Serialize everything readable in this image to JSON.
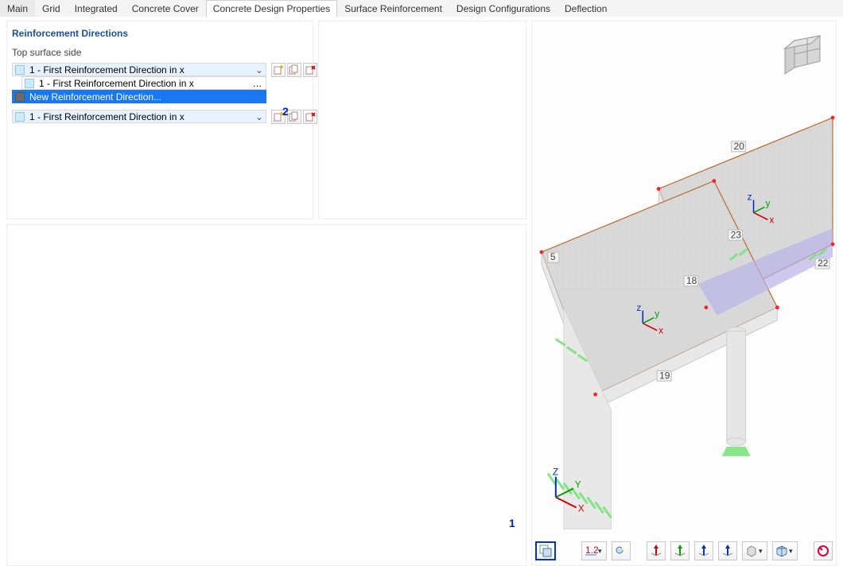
{
  "tabs": {
    "items": [
      "Main",
      "Grid",
      "Integrated",
      "Concrete Cover",
      "Concrete Design Properties",
      "Surface Reinforcement",
      "Design Configurations",
      "Deflection"
    ],
    "active_index": 4
  },
  "panel": {
    "title": "Reinforcement Directions",
    "section_label": "Top surface side",
    "rows": [
      {
        "text": "1 - First Reinforcement Direction in x",
        "style": "lightblue",
        "control": "dropdown",
        "buttons": true
      },
      {
        "text": "1 - First Reinforcement Direction in x",
        "style": "indent",
        "control": "ellipsis",
        "buttons": false
      },
      {
        "text": "New Reinforcement Direction...",
        "style": "selected",
        "control": "none",
        "buttons": false
      },
      {
        "text": "1 - First Reinforcement Direction in x",
        "style": "lightblue",
        "control": "dropdown",
        "buttons": true,
        "gap_before": 8
      }
    ],
    "row_button_icons": [
      "new-icon",
      "duplicate-icon",
      "delete-icon"
    ]
  },
  "annotations": {
    "a1": "1",
    "a2": "2"
  },
  "viewport": {
    "edge_labels": {
      "e5": "5",
      "e18": "18",
      "e19": "19",
      "e20": "20",
      "e22": "22",
      "e23": "23"
    },
    "coord_labels": {
      "x": "X",
      "y": "Y",
      "z": "Z"
    },
    "local_coord_labels": {
      "x": "x",
      "y": "y",
      "z": "z"
    },
    "colors": {
      "slab_fill": "#d9d9d9",
      "slab_stroke": "#b96a2b",
      "wall_fill": "#e8e8e8",
      "grid_line": "#c9c9c9",
      "vertex_dot": "#ff2020",
      "support_green": "#7be27b",
      "beam_purple": "#b8b2e8",
      "column_fill": "#e6e6e6",
      "axis_x": "#d40000",
      "axis_y": "#00a000",
      "axis_z": "#0030c0",
      "label_bg": "#f3f3f3",
      "label_border": "#bcbcbc",
      "label_text": "#444444",
      "nav_cube_face": "#d7d7d7",
      "nav_cube_edge": "#9a9a9a",
      "annotation": "#0020c0"
    },
    "toolbar_buttons": [
      {
        "name": "show-section-properties",
        "selected": true,
        "dd": false
      },
      {
        "name": "spacer"
      },
      {
        "name": "view-dimensions",
        "selected": false,
        "dd": true
      },
      {
        "name": "view-lighting",
        "selected": false,
        "dd": false
      },
      {
        "name": "gap"
      },
      {
        "name": "axis-x-toggle",
        "selected": false,
        "dd": false,
        "axis": "x"
      },
      {
        "name": "axis-y-toggle",
        "selected": false,
        "dd": false,
        "axis": "y"
      },
      {
        "name": "axis-z-toggle",
        "selected": false,
        "dd": false,
        "axis": "z"
      },
      {
        "name": "axis-neg-z",
        "selected": false,
        "dd": false,
        "axis": "nz"
      },
      {
        "name": "view-iso",
        "selected": false,
        "dd": true
      },
      {
        "name": "view-render-mode",
        "selected": false,
        "dd": true
      },
      {
        "name": "gap"
      },
      {
        "name": "reset-view",
        "selected": false,
        "dd": false
      }
    ]
  }
}
